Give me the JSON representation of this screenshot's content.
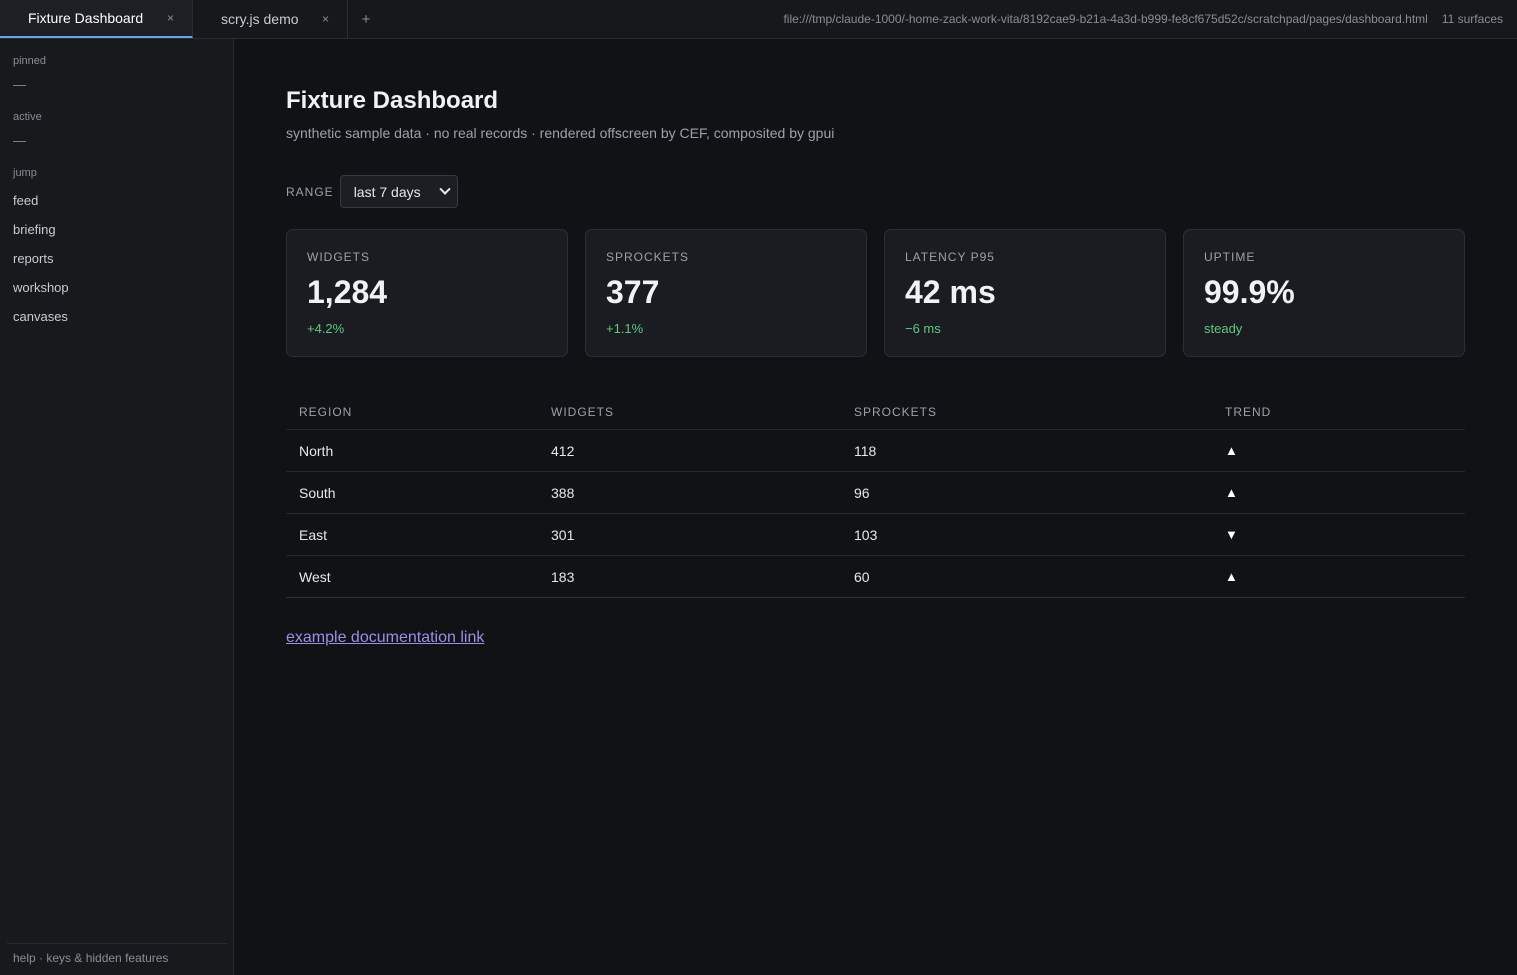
{
  "tabs": [
    {
      "label": "Fixture Dashboard",
      "close": "×"
    },
    {
      "label": "scry.js demo",
      "close": "×"
    }
  ],
  "tab_add": "+",
  "url": "file:///tmp/claude-1000/-home-zack-work-vita/8192cae9-b21a-4a3d-b999-fe8cf675d52c/scratchpad/pages/dashboard.html",
  "surfaces": "11 surfaces",
  "sidebar": {
    "pinned_label": "pinned",
    "pinned_empty": "—",
    "active_label": "active",
    "active_empty": "—",
    "jump_label": "jump",
    "items": [
      "feed",
      "briefing",
      "reports",
      "workshop",
      "canvases"
    ],
    "footer": "help · keys & hidden features"
  },
  "page": {
    "title": "Fixture Dashboard",
    "subtitle": "synthetic sample data · no real records · rendered offscreen by CEF, composited by gpui"
  },
  "range": {
    "label": "RANGE",
    "selected": "last 7 days"
  },
  "cards": [
    {
      "label": "WIDGETS",
      "value": "1,284",
      "delta": "+4.2%"
    },
    {
      "label": "SPROCKETS",
      "value": "377",
      "delta": "+1.1%"
    },
    {
      "label": "LATENCY P95",
      "value": "42 ms",
      "delta": "−6 ms"
    },
    {
      "label": "UPTIME",
      "value": "99.9%",
      "delta": "steady"
    }
  ],
  "table": {
    "headers": [
      "REGION",
      "WIDGETS",
      "SPROCKETS",
      "TREND"
    ],
    "rows": [
      {
        "region": "North",
        "widgets": "412",
        "sprockets": "118",
        "trend": "▲"
      },
      {
        "region": "South",
        "widgets": "388",
        "sprockets": "96",
        "trend": "▲"
      },
      {
        "region": "East",
        "widgets": "301",
        "sprockets": "103",
        "trend": "▼"
      },
      {
        "region": "West",
        "widgets": "183",
        "sprockets": "60",
        "trend": "▲"
      }
    ]
  },
  "link": {
    "label": "example documentation link"
  },
  "colors": {
    "accent_tab": "#63a6e6",
    "positive": "#5bc97d",
    "link": "#9b8fe6"
  }
}
